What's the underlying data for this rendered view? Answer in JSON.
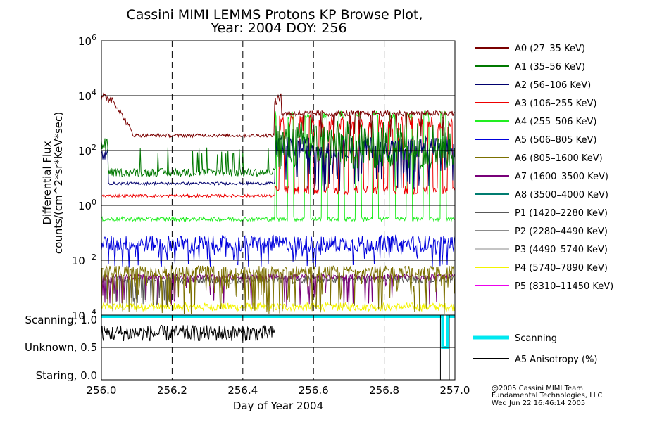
{
  "chart_data": {
    "type": "line",
    "title": [
      "Cassini MIMI LEMMS Protons KP Browse Plot,",
      "Year: 2004 DOY: 256"
    ],
    "xlabel": "Day of Year 2004",
    "ylabel": [
      "Differential Flux",
      "counts/(cm^2*sr*KeV*sec)"
    ],
    "xlim": [
      256.0,
      257.0
    ],
    "x_ticks": [
      "256.0",
      "256.2",
      "256.4",
      "256.6",
      "256.8",
      "257.0"
    ],
    "y_scale": "log",
    "ylim_exponents": [
      -4,
      6
    ],
    "y_ticks": [
      {
        "exp": 6,
        "base": "10",
        "sup": "6"
      },
      {
        "exp": 4,
        "base": "10",
        "sup": "4"
      },
      {
        "exp": 2,
        "base": "10",
        "sup": "2"
      },
      {
        "exp": 0,
        "base": "10",
        "sup": "0"
      },
      {
        "exp": -2,
        "base": "10",
        "sup": "−2"
      },
      {
        "exp": -4,
        "base": "10",
        "sup": "−4"
      }
    ],
    "status_ylim": [
      0.0,
      1.0
    ],
    "status_labels": [
      {
        "label": "Scanning, 1.0",
        "value": 1.0
      },
      {
        "label": "Unknown, 0.5",
        "value": 0.5
      },
      {
        "label": "Staring, 0.0",
        "value": 0.0
      }
    ],
    "series": [
      {
        "name": "A0 (27–35 KeV)",
        "color": "#7a0000"
      },
      {
        "name": "A1 (35–56 KeV)",
        "color": "#007800"
      },
      {
        "name": "A2 (56–106 KeV)",
        "color": "#00006e"
      },
      {
        "name": "A3 (106–255 KeV)",
        "color": "#ee0000"
      },
      {
        "name": "A4 (255–506 KeV)",
        "color": "#22ee22"
      },
      {
        "name": "A5 (506–805 KeV)",
        "color": "#0000dc"
      },
      {
        "name": "A6 (805–1600 KeV)",
        "color": "#7c7000"
      },
      {
        "name": "A7 (1600–3500 KeV)",
        "color": "#780078"
      },
      {
        "name": "A8 (3500–4000 KeV)",
        "color": "#007c70"
      },
      {
        "name": "P1 (1420–2280 KeV)",
        "color": "#585858"
      },
      {
        "name": "P2 (2280–4490 KeV)",
        "color": "#8c8c8c"
      },
      {
        "name": "P3 (4490–5740 KeV)",
        "color": "#c4c4c4"
      },
      {
        "name": "P4 (5740–7890 KeV)",
        "color": "#f4f400"
      },
      {
        "name": "P5 (8310–11450 KeV)",
        "color": "#ec00ec"
      }
    ],
    "status_series": [
      {
        "name": "Scanning",
        "color": "#00e8f0"
      },
      {
        "name": "A5 Anisotropy (%)",
        "color": "#000000"
      }
    ],
    "approx_levels_log10": {
      "A0": {
        "before": 2.5,
        "after": 3.3,
        "start_peak": 4.2
      },
      "A1": {
        "before": 1.2,
        "after": "variable"
      },
      "A2": {
        "before": 0.8,
        "after": 2.0
      },
      "A3": {
        "before": 0.35,
        "after": "bursts up to 3.3"
      },
      "A4": {
        "level": -0.5,
        "excursions_to": 3.3
      },
      "A5": {
        "level": -1.4
      },
      "A6": {
        "level": -2.5
      },
      "P1": {
        "level": -2.6
      }
    },
    "scanning_gap_day": [
      256.965,
      256.98
    ],
    "crossing_day": 256.49
  },
  "footer": [
    "@2005 Cassini MIMI Team",
    "Fundamental Technologies, LLC",
    "Wed Jun 22 16:46:14 2005"
  ],
  "colors": {
    "axis": "#000000",
    "background": "#ffffff"
  }
}
